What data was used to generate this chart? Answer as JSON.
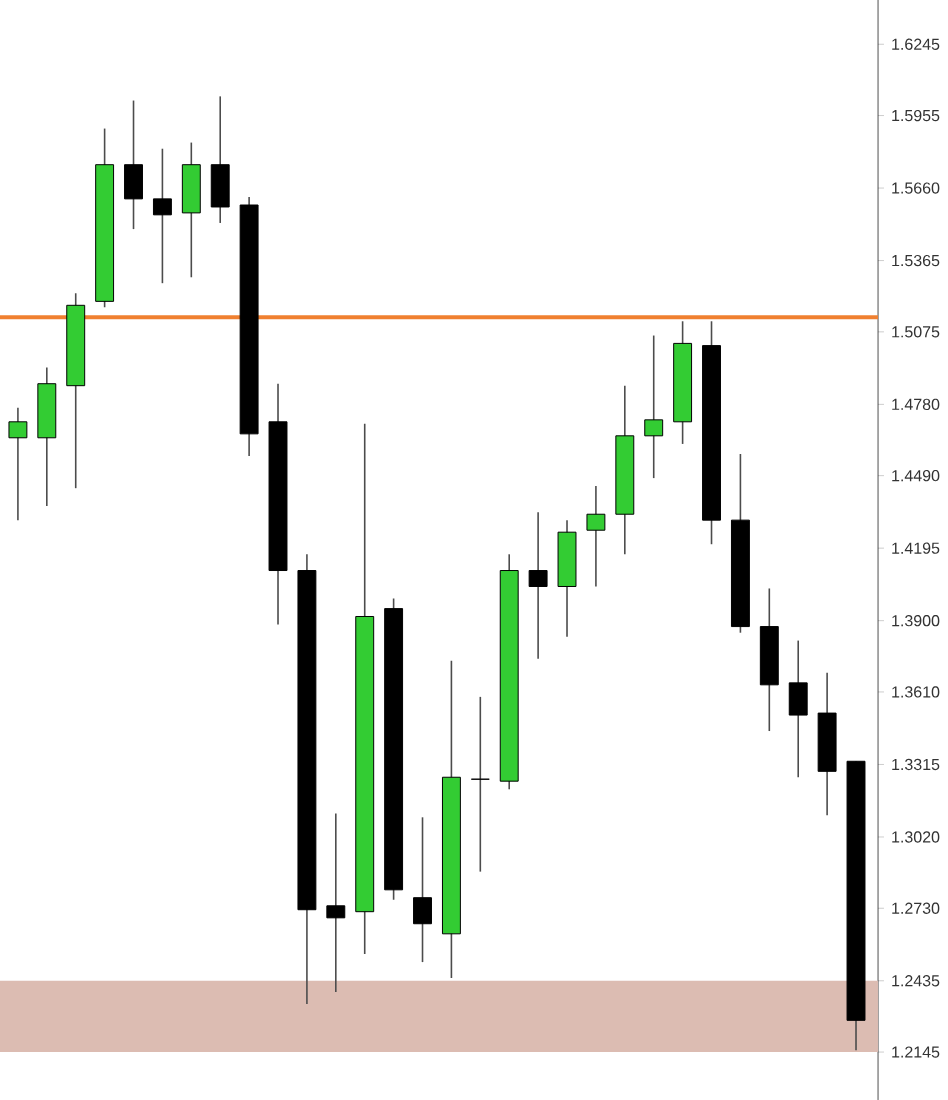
{
  "chart_data": {
    "type": "candlestick",
    "categories": [
      null,
      null,
      null,
      null,
      null,
      null,
      null,
      null,
      null,
      null,
      null,
      null,
      null,
      null,
      null,
      null,
      null,
      null,
      null,
      null,
      null,
      null,
      null,
      null,
      null,
      null,
      null,
      null,
      null,
      null
    ],
    "ohlc": [
      [
        1.4644,
        1.4766,
        1.4309,
        1.4709
      ],
      [
        1.4644,
        1.493,
        1.4366,
        1.4864
      ],
      [
        1.4856,
        1.5232,
        1.4439,
        1.5183
      ],
      [
        1.5199,
        1.5902,
        1.5175,
        1.5755
      ],
      [
        1.5755,
        1.6016,
        1.5493,
        1.5616
      ],
      [
        1.5616,
        1.582,
        1.5273,
        1.5551
      ],
      [
        1.5559,
        1.5845,
        1.5297,
        1.5755
      ],
      [
        1.5755,
        1.6033,
        1.5518,
        1.5583
      ],
      [
        1.5591,
        1.5624,
        1.457,
        1.466
      ],
      [
        1.4709,
        1.4864,
        1.3884,
        1.4104
      ],
      [
        1.4104,
        1.417,
        1.234,
        1.2724
      ],
      [
        1.274,
        1.3116,
        1.2389,
        1.2691
      ],
      [
        1.2716,
        1.4701,
        1.2544,
        1.3917
      ],
      [
        1.3949,
        1.399,
        1.2765,
        1.2805
      ],
      [
        1.2773,
        1.31,
        1.2511,
        1.2667
      ],
      [
        1.2626,
        1.3737,
        1.2446,
        1.3263
      ],
      [
        1.3255,
        1.359,
        1.2879,
        1.3255
      ],
      [
        1.3247,
        1.417,
        1.3214,
        1.4104
      ],
      [
        1.4104,
        1.4341,
        1.3745,
        1.4039
      ],
      [
        1.4039,
        1.4309,
        1.3835,
        1.426
      ],
      [
        1.4268,
        1.4448,
        1.4039,
        1.4333
      ],
      [
        1.4333,
        1.4856,
        1.417,
        1.4652
      ],
      [
        1.4652,
        1.506,
        1.448,
        1.4717
      ],
      [
        1.4709,
        1.5118,
        1.4619,
        1.5028
      ],
      [
        1.5019,
        1.5118,
        1.4211,
        1.4309
      ],
      [
        1.4309,
        1.4578,
        1.3851,
        1.3876
      ],
      [
        1.3876,
        1.4031,
        1.3451,
        1.3639
      ],
      [
        1.3647,
        1.3819,
        1.3263,
        1.3516
      ],
      [
        1.3524,
        1.3688,
        1.3108,
        1.3287
      ],
      [
        1.3328,
        1.3328,
        1.2152,
        1.2274
      ]
    ],
    "colors": [
      "#33cc33",
      "#33cc33",
      "#33cc33",
      "#33cc33",
      "#000000",
      "#000000",
      "#33cc33",
      "#000000",
      "#000000",
      "#000000",
      "#000000",
      "#000000",
      "#33cc33",
      "#000000",
      "#000000",
      "#33cc33",
      "#000000",
      "#33cc33",
      "#000000",
      "#33cc33",
      "#33cc33",
      "#33cc33",
      "#33cc33",
      "#33cc33",
      "#000000",
      "#000000",
      "#000000",
      "#000000",
      "#000000",
      "#000000"
    ],
    "ylim": [
      1.195,
      1.6425
    ],
    "yticks": [
      {
        "value": 1.6245,
        "label": "1.6245"
      },
      {
        "value": 1.5955,
        "label": "1.5955"
      },
      {
        "value": 1.566,
        "label": "1.5660"
      },
      {
        "value": 1.5365,
        "label": "1.5365"
      },
      {
        "value": 1.5075,
        "label": "1.5075"
      },
      {
        "value": 1.478,
        "label": "1.4780"
      },
      {
        "value": 1.449,
        "label": "1.4490"
      },
      {
        "value": 1.4195,
        "label": "1.4195"
      },
      {
        "value": 1.39,
        "label": "1.3900"
      },
      {
        "value": 1.361,
        "label": "1.3610"
      },
      {
        "value": 1.3315,
        "label": "1.3315"
      },
      {
        "value": 1.302,
        "label": "1.3020"
      },
      {
        "value": 1.273,
        "label": "1.2730"
      },
      {
        "value": 1.2435,
        "label": "1.2435"
      },
      {
        "value": 1.2145,
        "label": "1.2145"
      }
    ],
    "tick_labels": "y",
    "ref_lines": [
      {
        "axis": "y",
        "value": 1.5134,
        "color": "#f08030"
      }
    ],
    "bands": [
      {
        "axis": "y",
        "from": 1.2145,
        "to": 1.2435,
        "color": "#dcbcb2"
      }
    ]
  }
}
